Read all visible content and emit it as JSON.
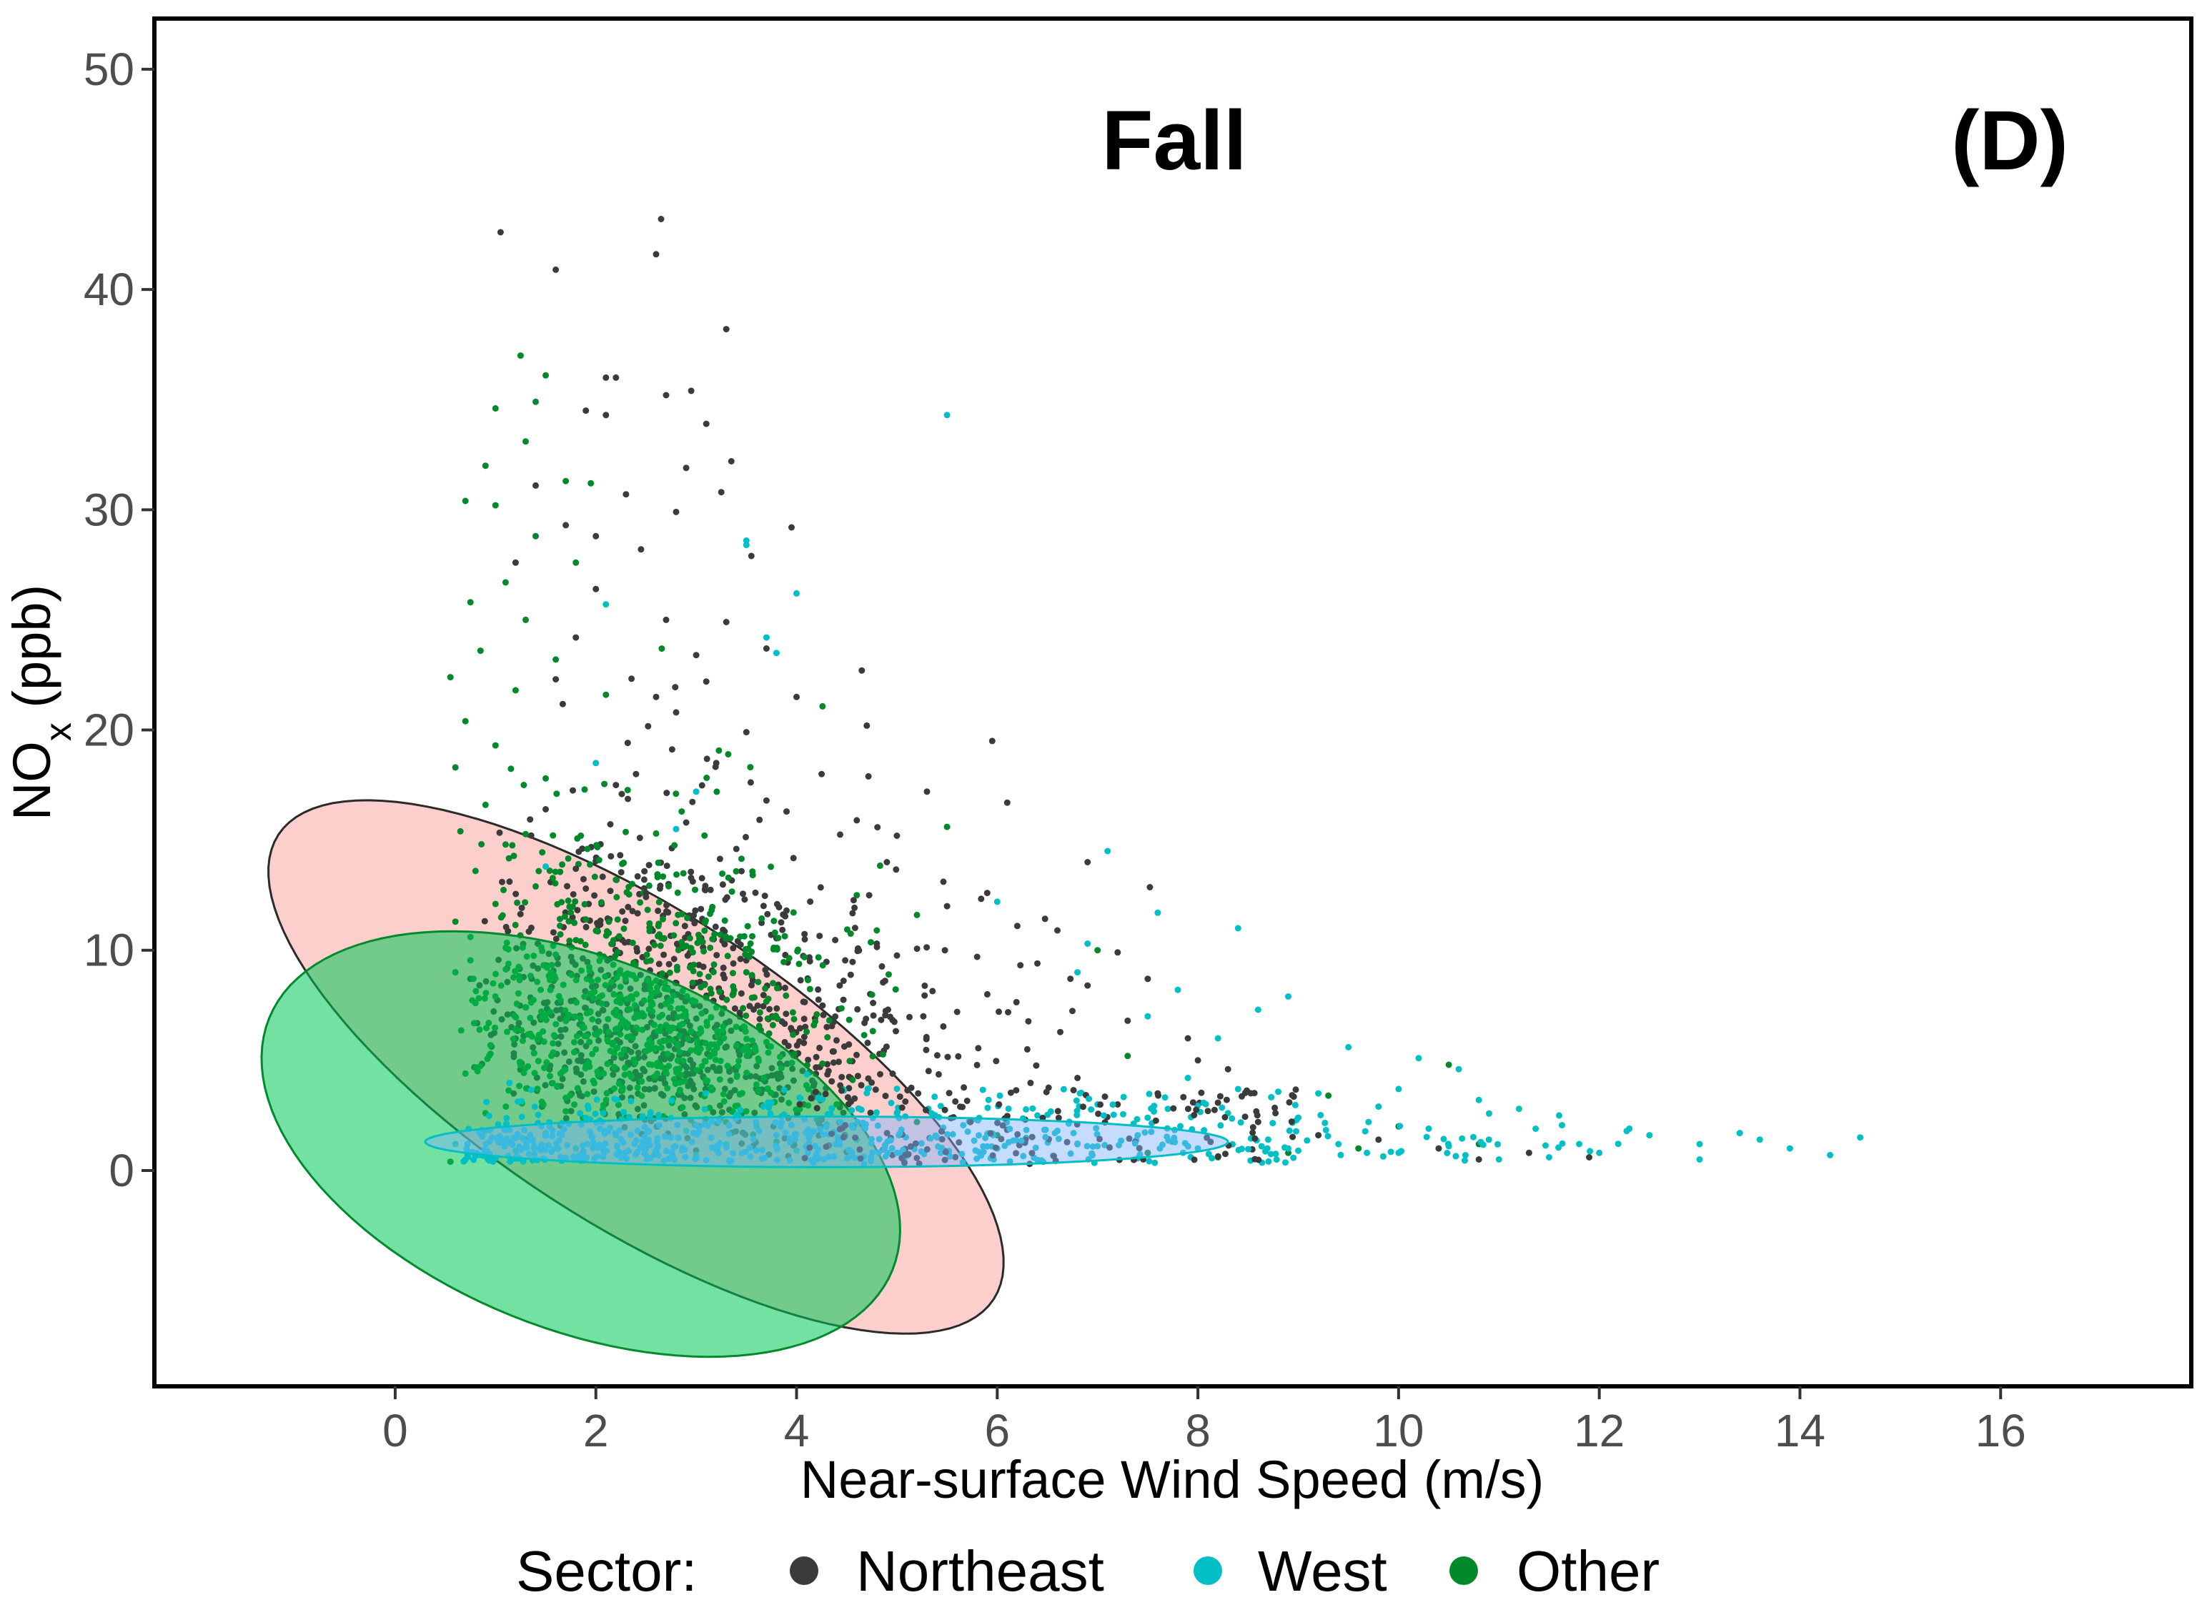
{
  "chart_data": {
    "type": "scatter",
    "title": "Fall",
    "panel_label": "(D)",
    "xlabel": "Near-surface Wind Speed (m/s)",
    "ylabel_main": "NO",
    "ylabel_sub": "x",
    "ylabel_rest": " (ppb)",
    "xlim": [
      -2.4,
      17.9
    ],
    "ylim": [
      -9.8,
      52.3
    ],
    "x_ticks": [
      0,
      2,
      4,
      6,
      8,
      10,
      12,
      14,
      16
    ],
    "x_tick_labels": [
      "0",
      "2",
      "4",
      "6",
      "8",
      "10",
      "12",
      "14",
      "16"
    ],
    "y_ticks": [
      0,
      10,
      20,
      30,
      40,
      50
    ],
    "y_tick_labels": [
      "0",
      "10",
      "20",
      "30",
      "40",
      "50"
    ],
    "grid": false,
    "legend": {
      "title": "Sector:",
      "position": "bottom",
      "entries": [
        {
          "label": "Northeast",
          "color": "#3b3b3b"
        },
        {
          "label": "West",
          "color": "#00c0c6"
        },
        {
          "label": "Other",
          "color": "#00892a"
        }
      ]
    },
    "series": [
      {
        "name": "Northeast",
        "color": "#3b3b3b",
        "points": [
          [
            1.05,
            42.6
          ],
          [
            2.65,
            43.2
          ],
          [
            1.6,
            40.9
          ],
          [
            2.6,
            41.6
          ],
          [
            3.3,
            38.2
          ],
          [
            2.1,
            36.0
          ],
          [
            2.2,
            36.0
          ],
          [
            2.7,
            35.2
          ],
          [
            2.95,
            35.4
          ],
          [
            1.9,
            34.5
          ],
          [
            2.1,
            34.3
          ],
          [
            3.1,
            33.9
          ],
          [
            2.9,
            31.9
          ],
          [
            3.35,
            32.2
          ],
          [
            3.25,
            30.8
          ],
          [
            1.4,
            31.1
          ],
          [
            2.3,
            30.7
          ],
          [
            2.8,
            29.9
          ],
          [
            3.95,
            29.2
          ],
          [
            2.45,
            28.2
          ],
          [
            1.2,
            27.6
          ],
          [
            2.0,
            26.4
          ],
          [
            2.7,
            25.0
          ],
          [
            3.3,
            24.9
          ],
          [
            3.7,
            23.7
          ],
          [
            1.8,
            24.2
          ],
          [
            3.1,
            22.2
          ],
          [
            4.65,
            22.7
          ],
          [
            4.0,
            21.5
          ],
          [
            4.7,
            20.2
          ],
          [
            5.95,
            19.5
          ],
          [
            2.8,
            20.8
          ],
          [
            3.5,
            19.9
          ],
          [
            3.2,
            18.5
          ],
          [
            4.25,
            18.0
          ],
          [
            2.4,
            18.0
          ],
          [
            3.9,
            16.3
          ],
          [
            4.6,
            15.9
          ],
          [
            5.3,
            17.2
          ],
          [
            6.1,
            16.7
          ],
          [
            6.9,
            14.0
          ],
          [
            5.9,
            12.6
          ],
          [
            4.9,
            14.0
          ],
          [
            5.5,
            12.0
          ],
          [
            6.2,
            11.1
          ],
          [
            6.6,
            10.9
          ],
          [
            7.2,
            9.9
          ],
          [
            6.4,
            9.4
          ],
          [
            7.5,
            8.7
          ],
          [
            6.9,
            8.4
          ],
          [
            5.8,
            9.7
          ],
          [
            7.9,
            6.0
          ],
          [
            7.3,
            6.8
          ],
          [
            8.0,
            5.0
          ],
          [
            8.3,
            4.6
          ],
          [
            6.8,
            4.2
          ],
          [
            7.6,
            3.5
          ],
          [
            8.1,
            2.7
          ],
          [
            8.6,
            2.2
          ],
          [
            9.2,
            1.6
          ],
          [
            9.8,
            1.4
          ],
          [
            10.4,
            1.0
          ],
          [
            10.8,
            0.5
          ],
          [
            11.3,
            0.8
          ],
          [
            11.9,
            0.6
          ],
          [
            7.2,
            3.0
          ],
          [
            6.3,
            5.5
          ],
          [
            5.6,
            7.2
          ],
          [
            4.8,
            10.3
          ],
          [
            3.9,
            11.8
          ],
          [
            2.5,
            12.6
          ],
          [
            1.8,
            13.7
          ],
          [
            3.4,
            14.6
          ],
          [
            2.9,
            15.8
          ],
          [
            3.7,
            16.8
          ],
          [
            2.2,
            17.5
          ],
          [
            1.5,
            16.4
          ],
          [
            2.6,
            21.5
          ],
          [
            1.6,
            22.3
          ],
          [
            3.0,
            23.4
          ],
          [
            2.0,
            28.8
          ],
          [
            1.7,
            29.3
          ],
          [
            3.55,
            27.9
          ],
          [
            5.0,
            15.2
          ]
        ]
      },
      {
        "name": "West",
        "color": "#00c0c6",
        "points": [
          [
            5.5,
            34.3
          ],
          [
            3.5,
            28.6
          ],
          [
            3.5,
            28.4
          ],
          [
            4.0,
            26.2
          ],
          [
            2.1,
            25.7
          ],
          [
            3.7,
            24.2
          ],
          [
            2.0,
            18.5
          ],
          [
            3.8,
            23.5
          ],
          [
            2.8,
            15.5
          ],
          [
            3.0,
            17.2
          ],
          [
            1.5,
            13.8
          ],
          [
            6.0,
            12.2
          ],
          [
            7.1,
            14.5
          ],
          [
            7.6,
            11.7
          ],
          [
            8.4,
            11.0
          ],
          [
            6.9,
            10.3
          ],
          [
            6.8,
            9.0
          ],
          [
            7.8,
            8.2
          ],
          [
            8.9,
            7.9
          ],
          [
            8.6,
            7.3
          ],
          [
            7.5,
            7.0
          ],
          [
            8.2,
            6.0
          ],
          [
            9.5,
            5.6
          ],
          [
            10.2,
            5.1
          ],
          [
            10.6,
            4.6
          ],
          [
            9.2,
            3.5
          ],
          [
            10.0,
            3.7
          ],
          [
            10.8,
            3.2
          ],
          [
            11.2,
            2.8
          ],
          [
            11.6,
            2.5
          ],
          [
            12.3,
            1.9
          ],
          [
            12.5,
            1.6
          ],
          [
            13.0,
            1.2
          ],
          [
            13.4,
            1.7
          ],
          [
            13.6,
            1.4
          ],
          [
            13.9,
            1.0
          ],
          [
            14.3,
            0.7
          ],
          [
            14.6,
            1.5
          ],
          [
            13.0,
            0.5
          ],
          [
            12.0,
            0.8
          ],
          [
            11.5,
            0.6
          ],
          [
            10.9,
            1.4
          ],
          [
            10.3,
            1.9
          ],
          [
            9.7,
            2.2
          ],
          [
            9.0,
            2.4
          ],
          [
            8.3,
            2.6
          ],
          [
            7.7,
            2.8
          ],
          [
            7.0,
            3.0
          ],
          [
            6.4,
            2.5
          ],
          [
            5.8,
            2.3
          ],
          [
            5.0,
            2.6
          ],
          [
            4.3,
            2.1
          ],
          [
            3.6,
            2.0
          ],
          [
            2.9,
            1.8
          ],
          [
            2.2,
            1.6
          ],
          [
            1.5,
            1.7
          ],
          [
            0.9,
            1.8
          ],
          [
            0.6,
            1.2
          ],
          [
            1.2,
            0.9
          ],
          [
            2.0,
            0.6
          ],
          [
            3.0,
            0.7
          ],
          [
            4.0,
            0.9
          ],
          [
            5.0,
            0.8
          ],
          [
            6.0,
            1.0
          ],
          [
            7.0,
            1.1
          ],
          [
            8.0,
            1.0
          ],
          [
            9.0,
            0.9
          ],
          [
            10.0,
            0.8
          ],
          [
            11.0,
            0.5
          ],
          [
            7.4,
            1.6
          ],
          [
            8.7,
            1.4
          ],
          [
            9.4,
            1.2
          ],
          [
            10.5,
            1.1
          ],
          [
            6.6,
            1.8
          ],
          [
            5.4,
            1.5
          ],
          [
            4.6,
            1.4
          ],
          [
            3.3,
            1.2
          ],
          [
            2.5,
            1.1
          ],
          [
            1.8,
            1.0
          ],
          [
            7.9,
            4.2
          ],
          [
            9.8,
            2.9
          ],
          [
            11.8,
            1.2
          ]
        ]
      },
      {
        "name": "Other",
        "color": "#00892a",
        "points": [
          [
            1.25,
            37.0
          ],
          [
            1.5,
            36.1
          ],
          [
            1.4,
            34.9
          ],
          [
            1.0,
            34.6
          ],
          [
            1.3,
            33.1
          ],
          [
            0.9,
            32.0
          ],
          [
            1.7,
            31.3
          ],
          [
            1.95,
            31.2
          ],
          [
            0.7,
            30.4
          ],
          [
            1.0,
            30.2
          ],
          [
            1.4,
            28.8
          ],
          [
            1.8,
            27.6
          ],
          [
            1.1,
            26.7
          ],
          [
            0.75,
            25.8
          ],
          [
            1.3,
            25.0
          ],
          [
            0.85,
            23.6
          ],
          [
            1.6,
            23.2
          ],
          [
            0.55,
            22.4
          ],
          [
            1.2,
            21.8
          ],
          [
            2.1,
            21.6
          ],
          [
            0.7,
            20.4
          ],
          [
            1.0,
            19.3
          ],
          [
            0.6,
            18.3
          ],
          [
            1.5,
            17.8
          ],
          [
            0.9,
            16.6
          ],
          [
            0.65,
            15.4
          ],
          [
            1.1,
            14.8
          ],
          [
            0.8,
            13.6
          ],
          [
            1.4,
            12.9
          ],
          [
            2.2,
            13.2
          ],
          [
            2.6,
            15.3
          ],
          [
            5.5,
            15.6
          ],
          [
            4.6,
            12.5
          ],
          [
            5.2,
            11.6
          ],
          [
            4.8,
            10.9
          ],
          [
            7.0,
            10.0
          ],
          [
            7.3,
            5.2
          ],
          [
            10.5,
            4.8
          ],
          [
            9.3,
            3.4
          ],
          [
            10.0,
            2.0
          ],
          [
            10.8,
            1.2
          ],
          [
            9.6,
            1.0
          ],
          [
            8.9,
            0.8
          ],
          [
            8.2,
            0.6
          ],
          [
            7.5,
            0.8
          ],
          [
            6.8,
            1.2
          ],
          [
            6.0,
            1.6
          ],
          [
            5.2,
            2.2
          ],
          [
            4.4,
            3.0
          ],
          [
            3.6,
            3.9
          ],
          [
            2.8,
            4.6
          ],
          [
            2.0,
            5.5
          ],
          [
            1.2,
            6.4
          ],
          [
            0.8,
            7.6
          ],
          [
            0.6,
            9.0
          ],
          [
            1.6,
            9.8
          ],
          [
            2.4,
            8.7
          ],
          [
            3.2,
            7.4
          ],
          [
            0.7,
            4.4
          ],
          [
            0.9,
            2.6
          ],
          [
            1.3,
            1.4
          ],
          [
            2.6,
            0.9
          ],
          [
            3.8,
            1.3
          ],
          [
            0.6,
            11.3
          ],
          [
            1.0,
            12.1
          ],
          [
            1.9,
            11.4
          ],
          [
            2.9,
            10.2
          ],
          [
            3.5,
            9.0
          ],
          [
            4.1,
            6.3
          ],
          [
            0.55,
            0.4
          ],
          [
            1.7,
            3.3
          ],
          [
            2.3,
            2.4
          ],
          [
            0.75,
            10.6
          ],
          [
            1.45,
            8.2
          ],
          [
            2.7,
            6.6
          ],
          [
            0.95,
            5.3
          ],
          [
            1.85,
            15.2
          ]
        ]
      }
    ],
    "ellipses": [
      {
        "series": "Northeast",
        "cx": 2.4,
        "cy": 4.7,
        "rx": 4.25,
        "ry": 7.1,
        "angle_deg": 33,
        "fill": "#f8766d",
        "fill_opacity": 0.35,
        "stroke": "#2b2b2b"
      },
      {
        "series": "Other",
        "cx": 1.85,
        "cy": 1.2,
        "rx": 3.35,
        "ry": 8.4,
        "angle_deg": 22,
        "fill": "#00c853",
        "fill_opacity": 0.55,
        "stroke": "#008a2e"
      },
      {
        "series": "West",
        "cx": 4.3,
        "cy": 1.3,
        "rx": 4.0,
        "ry": 1.15,
        "angle_deg": 0,
        "fill": "#7fb2ff",
        "fill_opacity": 0.45,
        "stroke": "#00c0c6"
      }
    ]
  }
}
